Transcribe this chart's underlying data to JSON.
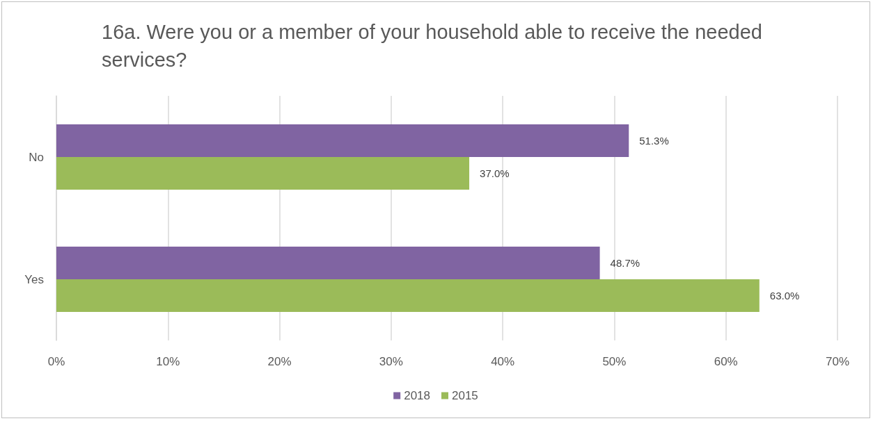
{
  "chart_data": {
    "type": "bar",
    "orientation": "horizontal",
    "title": "16a. Were you or a member of your household able to receive the needed services?",
    "categories": [
      "No",
      "Yes"
    ],
    "series": [
      {
        "name": "2018",
        "color": "#8064a2",
        "values": [
          51.3,
          48.7
        ],
        "value_labels": [
          "51.3%",
          "48.7%"
        ]
      },
      {
        "name": "2015",
        "color": "#9bbb59",
        "values": [
          37.0,
          63.0
        ],
        "value_labels": [
          "37.0%",
          "63.0%"
        ]
      }
    ],
    "xlim": [
      0,
      70
    ],
    "xticks": [
      {
        "value": 0,
        "label": "0%"
      },
      {
        "value": 10,
        "label": "10%"
      },
      {
        "value": 20,
        "label": "20%"
      },
      {
        "value": 30,
        "label": "30%"
      },
      {
        "value": 40,
        "label": "40%"
      },
      {
        "value": 50,
        "label": "50%"
      },
      {
        "value": 60,
        "label": "60%"
      },
      {
        "value": 70,
        "label": "70%"
      }
    ],
    "grid": "x",
    "legend": "bottom"
  }
}
